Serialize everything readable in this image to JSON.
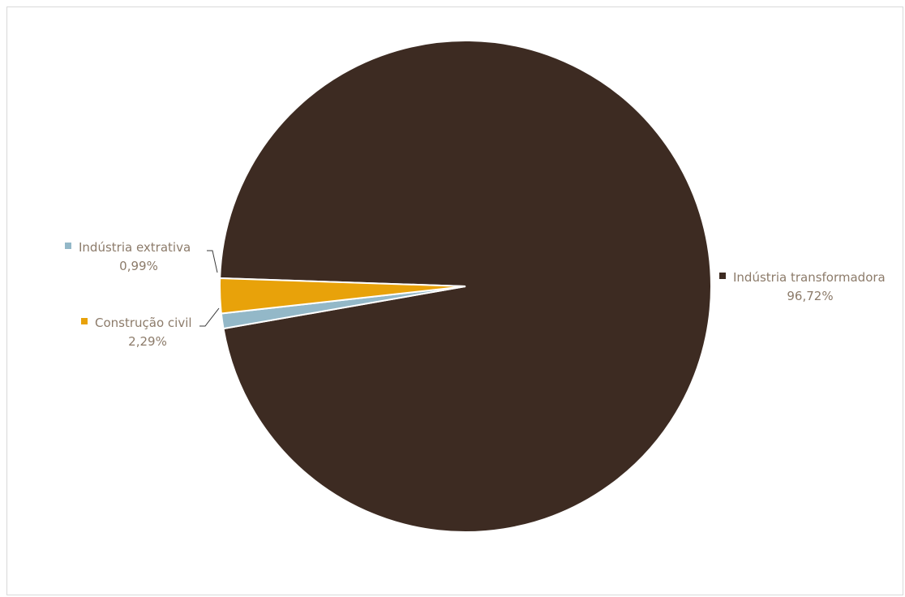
{
  "chart_data": {
    "type": "pie",
    "title": "",
    "slices": [
      {
        "label": "Indústria transformadora",
        "value": 96.72,
        "display": "96,72%",
        "color": "#3d2b22"
      },
      {
        "label": "Indústria extrativa",
        "value": 0.99,
        "display": "0,99%",
        "color": "#93b8c8"
      },
      {
        "label": "Construção civil",
        "value": 2.29,
        "display": "2,29%",
        "color": "#e8a20a"
      }
    ],
    "label_color": "#8c7b6a"
  }
}
